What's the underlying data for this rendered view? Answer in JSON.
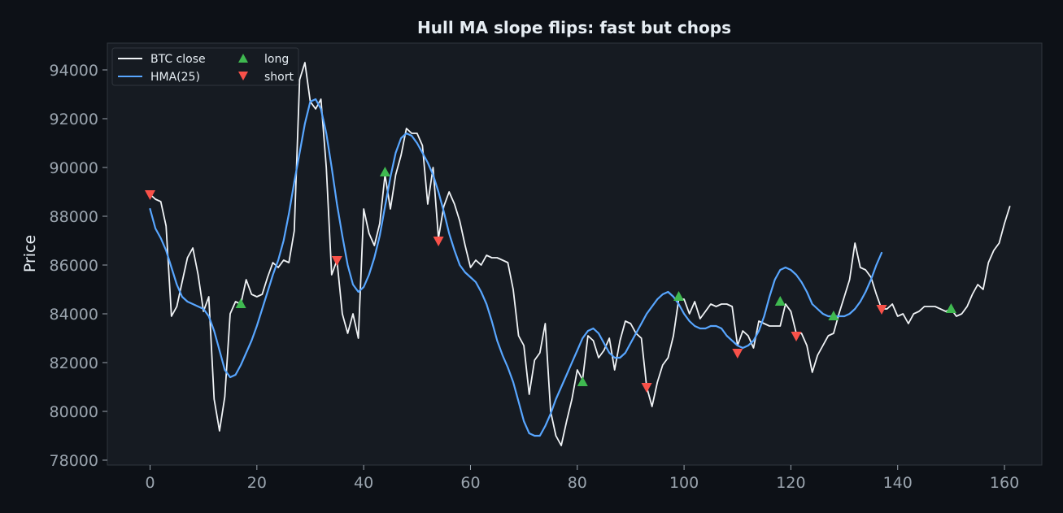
{
  "chart_data": {
    "type": "line",
    "title": "Hull MA slope flips: fast but chops",
    "xlabel": "",
    "ylabel": "Price",
    "xlim": [
      -8,
      167
    ],
    "ylim": [
      77800,
      95100
    ],
    "x_ticks": [
      0,
      20,
      40,
      60,
      80,
      100,
      120,
      140,
      160
    ],
    "y_ticks": [
      78000,
      80000,
      82000,
      84000,
      86000,
      88000,
      90000,
      92000,
      94000
    ],
    "grid": false,
    "legend_position": "top-left",
    "colors": {
      "background": "#0d1117",
      "plot_background": "#161b22",
      "btc": "#f0f3f6",
      "hma": "#58a6ff",
      "long": "#3fb950",
      "short": "#f85149"
    },
    "legend": [
      {
        "key": "btc",
        "label": "BTC close"
      },
      {
        "key": "hma",
        "label": "HMA(25)"
      },
      {
        "key": "long",
        "label": "long"
      },
      {
        "key": "short",
        "label": "short"
      }
    ],
    "series": [
      {
        "name": "BTC close",
        "key": "btc",
        "values": [
          88900,
          88700,
          88600,
          87600,
          83900,
          84300,
          85300,
          86300,
          86700,
          85600,
          84100,
          84700,
          80500,
          79200,
          80600,
          84000,
          84500,
          84400,
          85400,
          84800,
          84700,
          84800,
          85500,
          86100,
          85900,
          86200,
          86100,
          87400,
          93600,
          94300,
          92700,
          92400,
          92800,
          90000,
          85600,
          86200,
          84000,
          83200,
          84000,
          83000,
          88300,
          87300,
          86800,
          87700,
          89700,
          88300,
          89700,
          90500,
          91600,
          91400,
          91400,
          90900,
          88500,
          90000,
          87100,
          88400,
          89000,
          88500,
          87800,
          86800,
          85900,
          86200,
          86000,
          86400,
          86300,
          86300,
          86200,
          86100,
          85000,
          83100,
          82700,
          80700,
          82100,
          82400,
          83600,
          80000,
          79000,
          78600,
          79600,
          80500,
          81700,
          81300,
          83100,
          82900,
          82200,
          82500,
          83000,
          81700,
          82900,
          83700,
          83600,
          83200,
          83000,
          81000,
          80200,
          81200,
          81900,
          82200,
          83100,
          84600,
          84600,
          84000,
          84500,
          83800,
          84100,
          84400,
          84300,
          84400,
          84400,
          84300,
          82700,
          83300,
          83100,
          82600,
          83700,
          83600,
          83500,
          83500,
          83500,
          84400,
          84100,
          83200,
          83200,
          82700,
          81600,
          82300,
          82700,
          83100,
          83200,
          84000,
          84700,
          85400,
          86900,
          85900,
          85800,
          85500,
          84800,
          84200,
          84200,
          84400,
          83900,
          84000,
          83600,
          84000,
          84100,
          84300,
          84300,
          84300,
          84200,
          84100,
          84200,
          83900,
          84000,
          84300,
          84800,
          85200,
          85000,
          86100,
          86600,
          86900,
          87700,
          88400
        ]
      },
      {
        "name": "HMA(25)",
        "key": "hma",
        "values": [
          88300,
          87500,
          87100,
          86600,
          85900,
          85200,
          84700,
          84500,
          84400,
          84300,
          84200,
          83900,
          83300,
          82500,
          81700,
          81400,
          81500,
          81900,
          82400,
          82900,
          83500,
          84200,
          84900,
          85600,
          86200,
          87000,
          88100,
          89400,
          90600,
          91800,
          92700,
          92800,
          92400,
          91400,
          90000,
          88500,
          87200,
          86000,
          85200,
          84900,
          85100,
          85600,
          86300,
          87200,
          88400,
          89600,
          90600,
          91200,
          91400,
          91300,
          91000,
          90600,
          90200,
          89700,
          89000,
          88200,
          87300,
          86600,
          86000,
          85700,
          85500,
          85300,
          84900,
          84400,
          83700,
          82900,
          82300,
          81800,
          81200,
          80400,
          79600,
          79100,
          79000,
          79000,
          79400,
          79900,
          80500,
          81000,
          81500,
          82000,
          82500,
          83000,
          83300,
          83400,
          83200,
          82800,
          82400,
          82200,
          82200,
          82400,
          82800,
          83200,
          83600,
          84000,
          84300,
          84600,
          84800,
          84900,
          84700,
          84400,
          84000,
          83700,
          83500,
          83400,
          83400,
          83500,
          83500,
          83400,
          83100,
          82900,
          82700,
          82600,
          82700,
          82900,
          83300,
          83900,
          84700,
          85400,
          85800,
          85900,
          85800,
          85600,
          85300,
          84900,
          84400,
          84200,
          84000,
          83900,
          83900,
          83900,
          83900,
          84000,
          84200,
          84500,
          84900,
          85400,
          86000,
          86500
        ]
      }
    ],
    "markers": [
      {
        "type": "short",
        "x": 0,
        "y": 88900
      },
      {
        "type": "long",
        "x": 17,
        "y": 84400
      },
      {
        "type": "short",
        "x": 35,
        "y": 86200
      },
      {
        "type": "long",
        "x": 44,
        "y": 89800
      },
      {
        "type": "short",
        "x": 54,
        "y": 87000
      },
      {
        "type": "long",
        "x": 81,
        "y": 81200
      },
      {
        "type": "short",
        "x": 93,
        "y": 81000
      },
      {
        "type": "long",
        "x": 99,
        "y": 84700
      },
      {
        "type": "short",
        "x": 110,
        "y": 82400
      },
      {
        "type": "long",
        "x": 118,
        "y": 84500
      },
      {
        "type": "short",
        "x": 121,
        "y": 83100
      },
      {
        "type": "long",
        "x": 128,
        "y": 83900
      },
      {
        "type": "short",
        "x": 137,
        "y": 84200
      },
      {
        "type": "long",
        "x": 150,
        "y": 84200
      }
    ]
  }
}
